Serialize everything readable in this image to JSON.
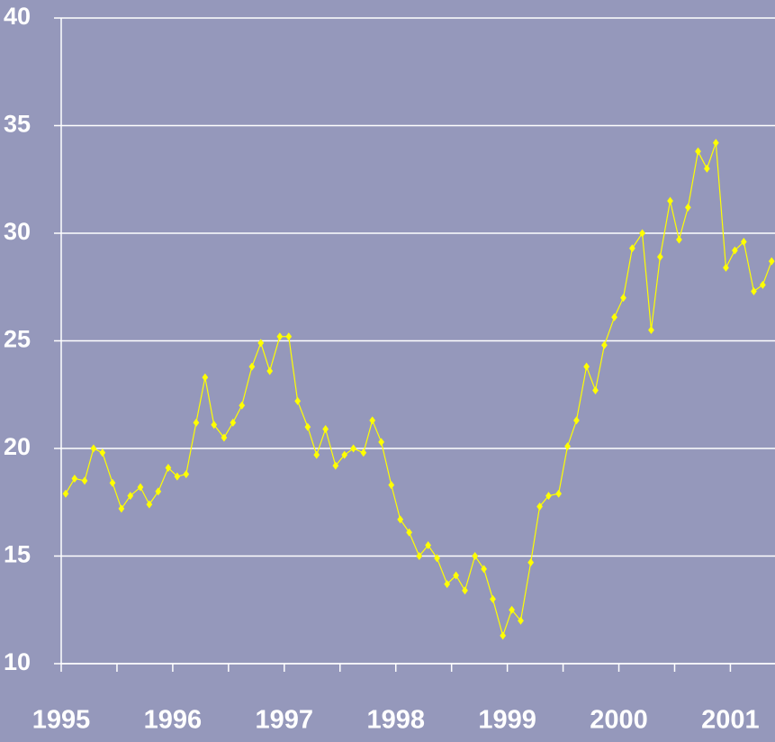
{
  "chart_data": {
    "type": "line",
    "x": [
      1995.04,
      1995.12,
      1995.21,
      1995.29,
      1995.37,
      1995.46,
      1995.54,
      1995.62,
      1995.71,
      1995.79,
      1995.87,
      1995.96,
      1996.04,
      1996.12,
      1996.21,
      1996.29,
      1996.37,
      1996.46,
      1996.54,
      1996.62,
      1996.71,
      1996.79,
      1996.87,
      1996.96,
      1997.04,
      1997.12,
      1997.21,
      1997.29,
      1997.37,
      1997.46,
      1997.54,
      1997.62,
      1997.71,
      1997.79,
      1997.87,
      1997.96,
      1998.04,
      1998.12,
      1998.21,
      1998.29,
      1998.37,
      1998.46,
      1998.54,
      1998.62,
      1998.71,
      1998.79,
      1998.87,
      1998.96,
      1999.04,
      1999.12,
      1999.21,
      1999.29,
      1999.37,
      1999.46,
      1999.54,
      1999.62,
      1999.71,
      1999.79,
      1999.87,
      1999.96,
      2000.04,
      2000.12,
      2000.21,
      2000.29,
      2000.37,
      2000.46,
      2000.54,
      2000.62,
      2000.71,
      2000.79,
      2000.87,
      2000.96,
      2001.04,
      2001.12,
      2001.21,
      2001.29,
      2001.37
    ],
    "series": [
      {
        "color": "#ffff00",
        "values": [
          17.9,
          18.6,
          18.5,
          20.0,
          19.8,
          18.4,
          17.2,
          17.8,
          18.2,
          17.4,
          18.0,
          19.1,
          18.7,
          18.8,
          21.2,
          23.3,
          21.1,
          20.5,
          21.2,
          22.0,
          23.8,
          24.9,
          23.6,
          25.2,
          25.2,
          22.2,
          21.0,
          19.7,
          20.9,
          19.2,
          19.7,
          20.0,
          19.8,
          21.3,
          20.3,
          18.3,
          16.7,
          16.1,
          15.0,
          15.5,
          14.9,
          13.7,
          14.1,
          13.4,
          15.0,
          14.4,
          13.0,
          11.3,
          12.5,
          12.0,
          14.7,
          17.3,
          17.8,
          17.9,
          20.1,
          21.3,
          23.8,
          22.7,
          24.8,
          26.1,
          27.0,
          29.3,
          30.0,
          25.5,
          28.9,
          31.5,
          29.7,
          31.2,
          33.8,
          33.0,
          34.2,
          28.4,
          29.2,
          29.6,
          27.3,
          27.6,
          28.7
        ]
      }
    ],
    "xlim": [
      1995,
      2001.4
    ],
    "xticks": [
      1995,
      1996,
      1997,
      1998,
      1999,
      2000,
      2001
    ],
    "xminor_ticks": [
      1995.5,
      1996.5,
      1997.5,
      1998.5,
      1999.5,
      2000.5
    ],
    "ylim": [
      10,
      40
    ],
    "yticks": [
      10,
      15,
      20,
      25,
      30,
      35,
      40
    ],
    "grid": true
  }
}
